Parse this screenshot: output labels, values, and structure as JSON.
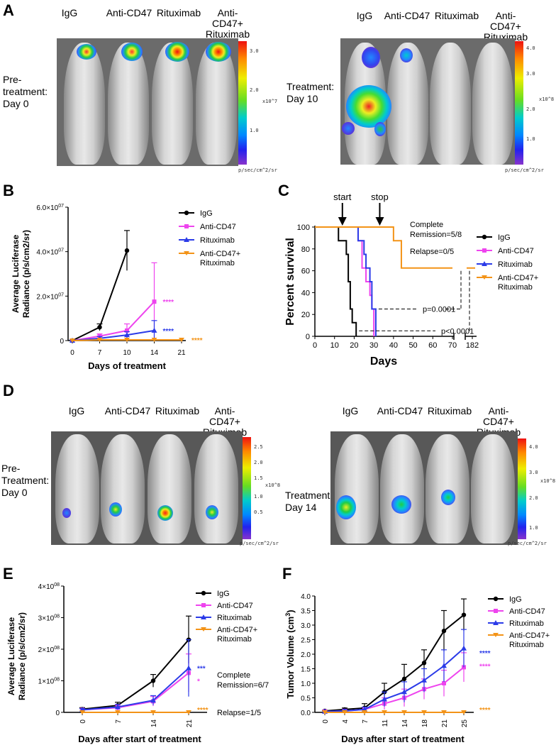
{
  "panels": {
    "A": {
      "letter": "A",
      "groups": [
        "IgG",
        "Anti-CD47",
        "Rituximab",
        "Anti-CD47+ Rituximab"
      ],
      "left": {
        "label": "Pre-treatment: Day 0",
        "scale_ticks": [
          "3.0",
          "2.0",
          "1.0"
        ],
        "exponent": "x10^7",
        "unit": "p/sec/cm^2/sr"
      },
      "right": {
        "label": "Treatment: Day 10",
        "scale_ticks": [
          "4.0",
          "3.0",
          "2.0",
          "1.0"
        ],
        "exponent": "x10^8",
        "unit": "p/sec/cm^2/sr"
      }
    },
    "D": {
      "letter": "D",
      "groups": [
        "IgG",
        "Anti-CD47",
        "Rituximab",
        "Anti-CD47+ Rituximab"
      ],
      "left": {
        "label": "Pre-Treatment: Day 0",
        "scale_ticks": [
          "2.5",
          "2.0",
          "1.5",
          "1.0",
          "0.5"
        ],
        "exponent": "x10^8",
        "unit": "p/sec/cm^2/sr"
      },
      "right": {
        "label": "Treatment: Day 14",
        "scale_ticks": [
          "4.0",
          "3.0",
          "2.0",
          "1.0"
        ],
        "exponent": "x10^8",
        "unit": "p/sec/cm^2/sr"
      }
    }
  },
  "colors": {
    "IgG": "#000000",
    "Anti-CD47": "#ee44ee",
    "Rituximab": "#2b3be8",
    "Combo": "#f39317"
  },
  "chart_data": [
    {
      "id": "B",
      "type": "line",
      "ylabel": "Average Luciferase Radiance (p/s/cm2/sr)",
      "xlabel": "Days of treatment",
      "x": [
        0,
        7,
        10,
        14,
        21
      ],
      "ytick_labels": [
        "0",
        "2.0×10^07",
        "4.0×10^07",
        "6.0×10^07"
      ],
      "ylim": [
        0,
        60000000
      ],
      "series": [
        {
          "name": "IgG",
          "x": [
            0,
            7,
            10
          ],
          "values": [
            0,
            6000000,
            40500000
          ],
          "err": [
            300000,
            1500000,
            9000000
          ]
        },
        {
          "name": "Anti-CD47",
          "x": [
            0,
            7,
            10,
            14
          ],
          "values": [
            0,
            2000000,
            4500000,
            17500000
          ],
          "err": [
            300000,
            1000000,
            3000000,
            17500000
          ],
          "sig": "****"
        },
        {
          "name": "Rituximab",
          "x": [
            0,
            7,
            10,
            14
          ],
          "values": [
            0,
            1000000,
            2500000,
            4500000
          ],
          "err": [
            300000,
            800000,
            1500000,
            4500000
          ],
          "sig": "****"
        },
        {
          "name": "Anti-CD47+ Rituximab",
          "x": [
            0,
            7,
            10,
            14,
            21
          ],
          "values": [
            0,
            300000,
            300000,
            300000,
            300000
          ],
          "err": [
            0,
            0,
            0,
            0,
            0
          ],
          "sig": "****"
        }
      ]
    },
    {
      "id": "C",
      "type": "line",
      "ylabel": "Percent survival",
      "xlabel": "Days",
      "x_ticks": [
        "0",
        "10",
        "20",
        "30",
        "40",
        "50",
        "60",
        "70",
        "182"
      ],
      "y_ticks": [
        "0",
        "20",
        "40",
        "60",
        "80",
        "100"
      ],
      "annotations": {
        "start": "start",
        "stop": "stop",
        "remission": "Complete Remission=5/8",
        "relapse": "Relapse=0/5",
        "p1": "p=0.0001",
        "p2": "p<0.0001"
      },
      "series": [
        {
          "name": "IgG",
          "steps": [
            [
              0,
              100
            ],
            [
              12,
              100
            ],
            [
              12,
              87.5
            ],
            [
              16,
              87.5
            ],
            [
              16,
              75
            ],
            [
              17,
              75
            ],
            [
              17,
              50
            ],
            [
              18,
              50
            ],
            [
              18,
              25
            ],
            [
              19,
              25
            ],
            [
              19,
              12.5
            ],
            [
              21,
              12.5
            ],
            [
              21,
              0
            ]
          ]
        },
        {
          "name": "Anti-CD47",
          "steps": [
            [
              0,
              100
            ],
            [
              22,
              100
            ],
            [
              22,
              87.5
            ],
            [
              24,
              87.5
            ],
            [
              24,
              62.5
            ],
            [
              26,
              62.5
            ],
            [
              26,
              50
            ],
            [
              28,
              50
            ],
            [
              28,
              37.5
            ],
            [
              29,
              37.5
            ],
            [
              29,
              25
            ],
            [
              30,
              25
            ],
            [
              30,
              0
            ]
          ]
        },
        {
          "name": "Rituximab",
          "steps": [
            [
              0,
              100
            ],
            [
              22,
              100
            ],
            [
              22,
              87.5
            ],
            [
              25,
              87.5
            ],
            [
              25,
              75
            ],
            [
              26,
              75
            ],
            [
              26,
              62.5
            ],
            [
              28,
              62.5
            ],
            [
              28,
              50
            ],
            [
              29,
              50
            ],
            [
              29,
              25
            ],
            [
              31,
              25
            ],
            [
              31,
              0
            ]
          ]
        },
        {
          "name": "Anti-CD47+ Rituximab",
          "steps": [
            [
              0,
              100
            ],
            [
              40,
              100
            ],
            [
              40,
              87.5
            ],
            [
              44,
              87.5
            ],
            [
              44,
              62.5
            ],
            [
              70,
              62.5
            ]
          ],
          "tail": "62.5 to day 182"
        }
      ]
    },
    {
      "id": "E",
      "type": "line",
      "ylabel": "Average Luciferase Radiance (p/s/cm2/sr)",
      "xlabel": "Days after start of treatment",
      "x": [
        0,
        7,
        14,
        21
      ],
      "ytick_labels": [
        "0",
        "1×10^08",
        "2×10^08",
        "3×10^08",
        "4×10^08"
      ],
      "ylim": [
        0,
        400000000
      ],
      "annotations": {
        "remission": "Complete Remission=6/7",
        "relapse": "Relapse=1/5"
      },
      "series": [
        {
          "name": "IgG",
          "values": [
            10000000,
            22000000,
            100000000,
            230000000
          ],
          "err": [
            5000000,
            10000000,
            20000000,
            75000000
          ]
        },
        {
          "name": "Anti-CD47",
          "values": [
            8000000,
            15000000,
            35000000,
            125000000
          ],
          "err": [
            4000000,
            8000000,
            15000000,
            60000000
          ],
          "sig": "*"
        },
        {
          "name": "Rituximab",
          "values": [
            8000000,
            17000000,
            38000000,
            140000000
          ],
          "err": [
            4000000,
            8000000,
            15000000,
            90000000
          ],
          "sig": "***"
        },
        {
          "name": "Anti-CD47+ Rituximab",
          "values": [
            0,
            0,
            0,
            0
          ],
          "err": [
            0,
            0,
            0,
            0
          ],
          "sig": "****"
        }
      ]
    },
    {
      "id": "F",
      "type": "line",
      "ylabel": "Tumor Volume (cm3)",
      "xlabel": "Days after start of treatment",
      "x": [
        0,
        4,
        7,
        11,
        14,
        18,
        21,
        25
      ],
      "ylim": [
        0,
        4.0
      ],
      "y_ticks": [
        "0.0",
        "0.5",
        "1.0",
        "1.5",
        "2.0",
        "2.5",
        "3.0",
        "3.5",
        "4.0"
      ],
      "series": [
        {
          "name": "IgG",
          "values": [
            0.05,
            0.1,
            0.15,
            0.7,
            1.15,
            1.7,
            2.8,
            3.35
          ],
          "err": [
            0.02,
            0.05,
            0.15,
            0.3,
            0.5,
            0.45,
            0.7,
            0.55
          ]
        },
        {
          "name": "Anti-CD47",
          "values": [
            0.03,
            0.05,
            0.1,
            0.3,
            0.5,
            0.8,
            1.0,
            1.55
          ],
          "err": [
            0.02,
            0.04,
            0.08,
            0.2,
            0.3,
            0.35,
            0.45,
            0.5
          ],
          "sig": "****"
        },
        {
          "name": "Rituximab",
          "values": [
            0.03,
            0.05,
            0.1,
            0.45,
            0.7,
            1.1,
            1.6,
            2.2
          ],
          "err": [
            0.02,
            0.04,
            0.08,
            0.25,
            0.35,
            0.4,
            0.55,
            0.65
          ],
          "sig": "****"
        },
        {
          "name": "Anti-CD47+ Rituximab",
          "values": [
            0,
            0,
            0,
            0,
            0,
            0,
            0,
            0
          ],
          "err": [
            0,
            0,
            0,
            0,
            0,
            0,
            0,
            0
          ],
          "sig": "****"
        }
      ]
    }
  ]
}
